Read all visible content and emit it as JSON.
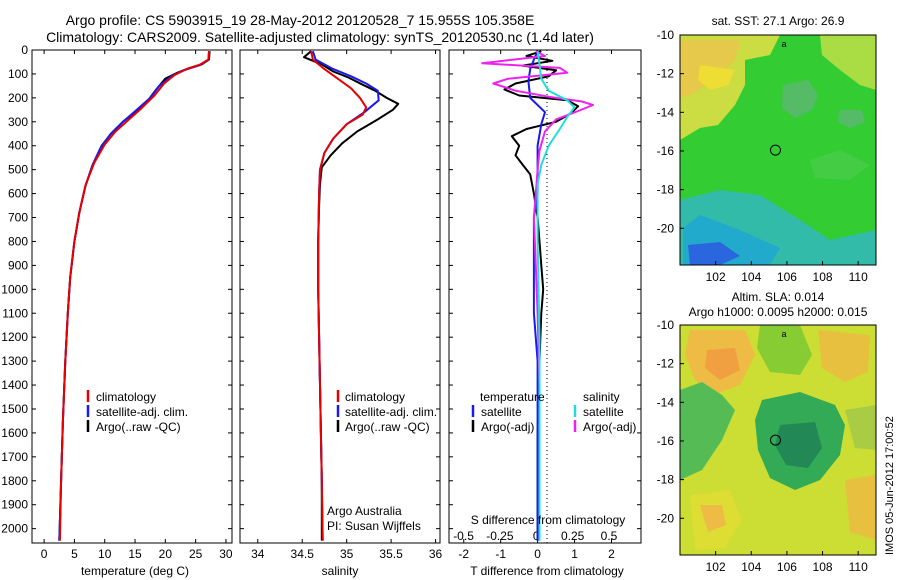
{
  "title": {
    "line1": "Argo profile: CS 5903915_19 28-May-2012 20120528_7 15.955S 105.358E",
    "line2": "Climatology: CARS2009. Satellite-adjusted climatology: synTS_20120530.nc (1.4d later)"
  },
  "colors": {
    "climatology": "#e60000",
    "satellite": "#1a1aee",
    "argo": "#000000",
    "sat_salinity": "#22dddd",
    "argo_salinity": "#ee22ee"
  },
  "chart_data": [
    {
      "id": "temperature",
      "type": "line",
      "xlabel": "temperature (deg C)",
      "ylabel": "",
      "xlim": [
        -2,
        31
      ],
      "ylim": [
        2060,
        0
      ],
      "xticks": [
        0,
        5,
        10,
        15,
        20,
        25,
        30
      ],
      "yticks": [
        0,
        100,
        200,
        300,
        400,
        500,
        600,
        700,
        800,
        900,
        1000,
        1100,
        1200,
        1300,
        1400,
        1500,
        1600,
        1700,
        1800,
        1900,
        2000
      ],
      "legend": [
        "climatology",
        "satellite-adj. clim.",
        "Argo(..raw -QC)"
      ],
      "series": [
        {
          "name": "Argo(..raw -QC)",
          "color": "#000000",
          "points": [
            [
              27.3,
              5
            ],
            [
              27.2,
              40
            ],
            [
              26.0,
              60
            ],
            [
              24.0,
              75
            ],
            [
              22.0,
              95
            ],
            [
              20.0,
              120
            ],
            [
              18.5,
              165
            ],
            [
              17.0,
              215
            ],
            [
              15.0,
              260
            ],
            [
              13.0,
              300
            ],
            [
              11.0,
              350
            ],
            [
              9.5,
              400
            ],
            [
              8.0,
              480
            ],
            [
              6.8,
              570
            ],
            [
              5.8,
              680
            ],
            [
              5.0,
              800
            ],
            [
              4.3,
              950
            ],
            [
              3.9,
              1100
            ],
            [
              3.5,
              1300
            ],
            [
              3.1,
              1550
            ],
            [
              2.8,
              1800
            ],
            [
              2.5,
              2050
            ]
          ]
        },
        {
          "name": "satellite-adj. clim.",
          "color": "#1a1aee",
          "points": [
            [
              27.2,
              5
            ],
            [
              27.1,
              40
            ],
            [
              25.5,
              65
            ],
            [
              23.0,
              85
            ],
            [
              21.0,
              110
            ],
            [
              19.0,
              150
            ],
            [
              17.5,
              200
            ],
            [
              15.3,
              250
            ],
            [
              13.0,
              300
            ],
            [
              11.0,
              350
            ],
            [
              9.3,
              410
            ],
            [
              8.0,
              480
            ],
            [
              6.8,
              570
            ],
            [
              5.8,
              680
            ],
            [
              5.0,
              800
            ],
            [
              4.3,
              950
            ],
            [
              3.9,
              1100
            ],
            [
              3.5,
              1300
            ],
            [
              3.1,
              1550
            ],
            [
              2.8,
              1800
            ],
            [
              2.5,
              2050
            ]
          ]
        },
        {
          "name": "climatology",
          "color": "#e60000",
          "points": [
            [
              27.2,
              5
            ],
            [
              27.1,
              40
            ],
            [
              25.8,
              60
            ],
            [
              23.5,
              80
            ],
            [
              21.5,
              105
            ],
            [
              19.8,
              140
            ],
            [
              18.2,
              190
            ],
            [
              16.0,
              245
            ],
            [
              14.0,
              290
            ],
            [
              11.8,
              340
            ],
            [
              10.0,
              395
            ],
            [
              8.3,
              470
            ],
            [
              6.9,
              560
            ],
            [
              5.8,
              680
            ],
            [
              5.0,
              800
            ],
            [
              4.3,
              950
            ],
            [
              3.9,
              1100
            ],
            [
              3.5,
              1300
            ],
            [
              3.1,
              1550
            ],
            [
              2.8,
              1800
            ],
            [
              2.6,
              2050
            ]
          ]
        }
      ]
    },
    {
      "id": "salinity",
      "type": "line",
      "xlabel": "salinity",
      "xlim": [
        33.8,
        36.05
      ],
      "ylim": [
        2060,
        0
      ],
      "xticks": [
        34,
        34.5,
        35,
        35.5,
        36
      ],
      "xtick_labels": [
        "34",
        "34.5",
        "35",
        "35.5",
        "36"
      ],
      "legend": [
        "climatology",
        "satellite-adj. clim.",
        "Argo(..raw -QC)"
      ],
      "annotation": [
        "Argo Australia",
        "PI: Susan Wijffels"
      ],
      "series": [
        {
          "name": "Argo(..raw -QC)",
          "color": "#000000",
          "points": [
            [
              34.6,
              5
            ],
            [
              34.52,
              30
            ],
            [
              34.72,
              60
            ],
            [
              34.85,
              90
            ],
            [
              35.02,
              115
            ],
            [
              35.18,
              145
            ],
            [
              35.32,
              170
            ],
            [
              35.45,
              200
            ],
            [
              35.58,
              225
            ],
            [
              35.52,
              250
            ],
            [
              35.35,
              290
            ],
            [
              35.12,
              340
            ],
            [
              34.95,
              390
            ],
            [
              34.82,
              440
            ],
            [
              34.72,
              490
            ],
            [
              34.7,
              560
            ],
            [
              34.69,
              650
            ],
            [
              34.68,
              800
            ],
            [
              34.68,
              1000
            ],
            [
              34.69,
              1200
            ],
            [
              34.7,
              1400
            ],
            [
              34.71,
              1600
            ],
            [
              34.72,
              1800
            ],
            [
              34.72,
              2050
            ]
          ]
        },
        {
          "name": "satellite-adj. clim.",
          "color": "#1a1aee",
          "points": [
            [
              34.62,
              5
            ],
            [
              34.65,
              40
            ],
            [
              34.85,
              80
            ],
            [
              35.05,
              110
            ],
            [
              35.22,
              140
            ],
            [
              35.35,
              170
            ],
            [
              35.36,
              210
            ],
            [
              35.2,
              260
            ],
            [
              35.0,
              310
            ],
            [
              34.85,
              370
            ],
            [
              34.75,
              430
            ],
            [
              34.7,
              500
            ],
            [
              34.69,
              600
            ],
            [
              34.68,
              800
            ],
            [
              34.68,
              1000
            ],
            [
              34.69,
              1200
            ],
            [
              34.7,
              1400
            ],
            [
              34.71,
              1600
            ],
            [
              34.72,
              1800
            ],
            [
              34.73,
              2050
            ]
          ]
        },
        {
          "name": "climatology",
          "color": "#e60000",
          "points": [
            [
              34.6,
              5
            ],
            [
              34.62,
              40
            ],
            [
              34.75,
              80
            ],
            [
              34.9,
              120
            ],
            [
              35.05,
              160
            ],
            [
              35.15,
              200
            ],
            [
              35.22,
              240
            ],
            [
              35.18,
              270
            ],
            [
              35.0,
              310
            ],
            [
              34.85,
              370
            ],
            [
              34.75,
              430
            ],
            [
              34.7,
              500
            ],
            [
              34.69,
              600
            ],
            [
              34.68,
              800
            ],
            [
              34.68,
              1000
            ],
            [
              34.69,
              1200
            ],
            [
              34.7,
              1400
            ],
            [
              34.71,
              1600
            ],
            [
              34.72,
              1800
            ],
            [
              34.73,
              2050
            ]
          ]
        }
      ]
    },
    {
      "id": "differences",
      "type": "line",
      "xlabel": "T difference from climatology",
      "xlabel_top": "S difference from climatology",
      "xlim": [
        -2.4,
        2.8
      ],
      "ylim": [
        2060,
        0
      ],
      "xticks": [
        -2,
        -1,
        0,
        1,
        2
      ],
      "xticks_salinity": [
        -0.5,
        -0.25,
        0,
        0.25,
        0.5
      ],
      "xticks_salinity_labels": [
        "-0.5",
        "-0.25",
        "0",
        "0.25",
        "0.5"
      ],
      "legend_temperature": {
        "title": "temperature",
        "items": [
          "satellite",
          "Argo(-adj)"
        ]
      },
      "legend_salinity": {
        "title": "salinity",
        "items": [
          "satellite",
          "Argo(-adj)"
        ]
      },
      "series": [
        {
          "name": "temperature Argo(-adj)",
          "color": "#000000",
          "points": [
            [
              0.1,
              5
            ],
            [
              -0.3,
              25
            ],
            [
              0.4,
              45
            ],
            [
              -0.4,
              65
            ],
            [
              0.5,
              85
            ],
            [
              0.3,
              110
            ],
            [
              -0.6,
              140
            ],
            [
              -0.9,
              165
            ],
            [
              -0.5,
              190
            ],
            [
              0.8,
              210
            ],
            [
              1.1,
              235
            ],
            [
              0.9,
              265
            ],
            [
              0.5,
              300
            ],
            [
              -0.3,
              330
            ],
            [
              -0.7,
              360
            ],
            [
              -0.5,
              400
            ],
            [
              -0.6,
              440
            ],
            [
              -0.4,
              480
            ],
            [
              -0.2,
              520
            ],
            [
              -0.1,
              600
            ],
            [
              0.0,
              700
            ],
            [
              0.05,
              800
            ],
            [
              0.1,
              900
            ],
            [
              0.15,
              1000
            ],
            [
              0.1,
              1100
            ],
            [
              0.05,
              1300
            ],
            [
              0.0,
              1600
            ],
            [
              0.0,
              2050
            ]
          ]
        },
        {
          "name": "temperature satellite",
          "color": "#1a1aee",
          "points": [
            [
              0.0,
              5
            ],
            [
              -0.1,
              40
            ],
            [
              -0.2,
              80
            ],
            [
              -0.25,
              130
            ],
            [
              -0.2,
              200
            ],
            [
              0.2,
              260
            ],
            [
              0.1,
              310
            ],
            [
              0.0,
              400
            ],
            [
              0.0,
              600
            ],
            [
              -0.1,
              700
            ],
            [
              -0.1,
              900
            ],
            [
              -0.1,
              1100
            ],
            [
              0.0,
              1300
            ],
            [
              0.0,
              1600
            ],
            [
              0.0,
              2050
            ]
          ]
        },
        {
          "name": "salinity Argo(-adj)",
          "color": "#ee22ee",
          "points": [
            [
              -0.05,
              5
            ],
            [
              0.2,
              25
            ],
            [
              -1.5,
              55
            ],
            [
              0.6,
              75
            ],
            [
              0.8,
              95
            ],
            [
              -0.8,
              120
            ],
            [
              -1.2,
              140
            ],
            [
              -0.6,
              170
            ],
            [
              0.3,
              195
            ],
            [
              1.2,
              215
            ],
            [
              1.5,
              230
            ],
            [
              1.1,
              255
            ],
            [
              0.5,
              290
            ],
            [
              0.2,
              340
            ],
            [
              0.05,
              420
            ],
            [
              0.0,
              500
            ],
            [
              -0.05,
              600
            ],
            [
              -0.1,
              700
            ],
            [
              -0.05,
              900
            ],
            [
              0.0,
              1100
            ],
            [
              0.05,
              1400
            ],
            [
              0.05,
              1700
            ],
            [
              0.05,
              2050
            ]
          ]
        },
        {
          "name": "salinity satellite",
          "color": "#22dddd",
          "points": [
            [
              0.0,
              5
            ],
            [
              0.05,
              60
            ],
            [
              0.1,
              120
            ],
            [
              0.3,
              170
            ],
            [
              0.8,
              210
            ],
            [
              1.0,
              240
            ],
            [
              0.8,
              280
            ],
            [
              0.6,
              330
            ],
            [
              0.3,
              400
            ],
            [
              0.1,
              480
            ],
            [
              0.0,
              560
            ],
            [
              0.0,
              800
            ],
            [
              0.05,
              1200
            ],
            [
              0.05,
              1600
            ],
            [
              0.05,
              2050
            ]
          ]
        }
      ]
    },
    {
      "id": "sst_map",
      "type": "heatmap",
      "title": "sat. SST: 27.1 Argo: 26.9",
      "xlim": [
        100,
        111
      ],
      "ylim": [
        -21.9,
        -10
      ],
      "xticks": [
        102,
        104,
        106,
        108,
        110
      ],
      "yticks": [
        -10,
        -12,
        -14,
        -16,
        -18,
        -20
      ],
      "float_position": [
        105.358,
        -15.955
      ]
    },
    {
      "id": "sla_map",
      "type": "heatmap",
      "title_line1": "Altim. SLA: 0.014",
      "title_line2": "Argo h1000: 0.0095 h2000: 0.015",
      "xlim": [
        100,
        111
      ],
      "ylim": [
        -21.9,
        -10
      ],
      "xticks": [
        102,
        104,
        106,
        108,
        110
      ],
      "yticks": [
        -10,
        -12,
        -14,
        -16,
        -18,
        -20
      ],
      "float_position": [
        105.358,
        -15.955
      ]
    }
  ],
  "side_note": "IMOS 05-Jun-2012 17:00:52"
}
